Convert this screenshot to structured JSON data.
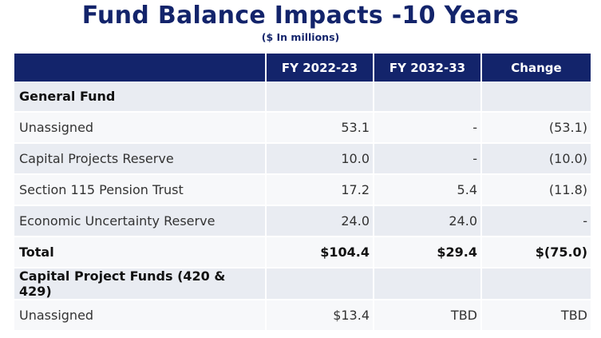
{
  "title": "Fund Balance Impacts -10 Years",
  "subtitle": "($ In millions)",
  "table": {
    "headers": [
      "",
      "FY 2022-23",
      "FY 2032-33",
      "Change"
    ],
    "rows": [
      {
        "label": "General Fund",
        "fy2022": "",
        "fy2032": "",
        "change": ""
      },
      {
        "label": "Unassigned",
        "fy2022": "53.1",
        "fy2032": "-",
        "change": "(53.1)"
      },
      {
        "label": "Capital Projects Reserve",
        "fy2022": "10.0",
        "fy2032": "-",
        "change": "(10.0)"
      },
      {
        "label": "Section 115 Pension Trust",
        "fy2022": "17.2",
        "fy2032": "5.4",
        "change": "(11.8)"
      },
      {
        "label": "Economic Uncertainty Reserve",
        "fy2022": "24.0",
        "fy2032": "24.0",
        "change": "-"
      },
      {
        "label": "Total",
        "fy2022": "$104.4",
        "fy2032": "$29.4",
        "change": "$(75.0)"
      },
      {
        "label": "Capital Project Funds (420 & 429)",
        "fy2022": "",
        "fy2032": "",
        "change": ""
      },
      {
        "label": "Unassigned",
        "fy2022": "$13.4",
        "fy2032": "TBD",
        "change": "TBD"
      }
    ]
  },
  "colors": {
    "header_bg": "#13246b",
    "title_color": "#13246b",
    "row_shade": "#e9ecf2",
    "row_plain": "#f7f8fa"
  }
}
